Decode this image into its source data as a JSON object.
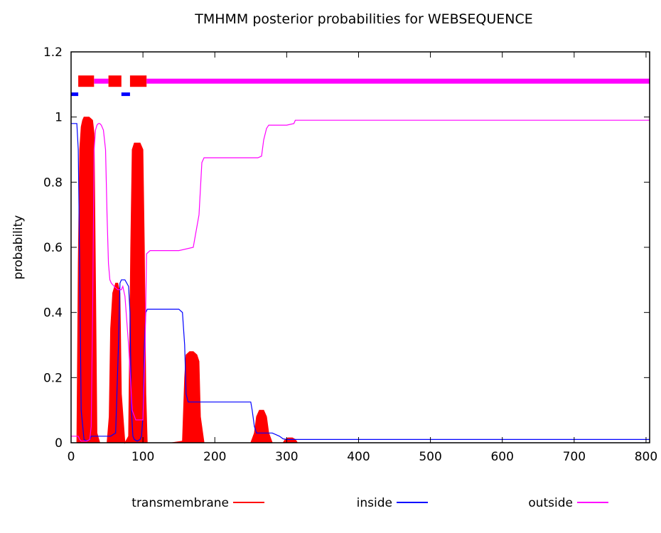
{
  "chart_data": {
    "type": "line",
    "title": "TMHMM posterior probabilities for WEBSEQUENCE",
    "xlabel": "",
    "ylabel": "probability",
    "xlim": [
      0,
      805
    ],
    "ylim": [
      0,
      1.2
    ],
    "x_ticks": [
      "0",
      "100",
      "200",
      "300",
      "400",
      "500",
      "600",
      "700",
      "800"
    ],
    "y_ticks": [
      "0",
      "0.2",
      "0.4",
      "0.6",
      "0.8",
      "1",
      "1.2"
    ],
    "grid": false,
    "legend_position": "bottom",
    "colors": {
      "transmembrane": "#ff0000",
      "inside": "#0000ff",
      "outside": "#ff00ff"
    },
    "series": [
      {
        "name": "transmembrane",
        "style": "filled",
        "x": [
          0,
          8,
          10,
          12,
          14,
          16,
          18,
          20,
          25,
          30,
          32,
          34,
          36,
          40,
          45,
          50,
          53,
          55,
          58,
          62,
          65,
          68,
          70,
          75,
          80,
          83,
          85,
          88,
          92,
          96,
          100,
          102,
          104,
          106,
          110,
          120,
          140,
          155,
          158,
          160,
          165,
          170,
          175,
          178,
          180,
          185,
          200,
          250,
          255,
          258,
          262,
          268,
          272,
          275,
          280,
          295,
          298,
          302,
          308,
          312,
          315,
          320,
          805
        ],
        "values": [
          0,
          0,
          0.55,
          0.9,
          0.97,
          0.99,
          1.0,
          1.0,
          1.0,
          0.99,
          0.95,
          0.5,
          0.03,
          0,
          0,
          0,
          0.08,
          0.35,
          0.46,
          0.49,
          0.49,
          0.46,
          0.15,
          0,
          0.02,
          0.6,
          0.9,
          0.92,
          0.92,
          0.92,
          0.9,
          0.6,
          0.15,
          0,
          0,
          0,
          0,
          0.005,
          0.2,
          0.27,
          0.28,
          0.28,
          0.27,
          0.25,
          0.08,
          0,
          0,
          0,
          0.03,
          0.08,
          0.1,
          0.1,
          0.08,
          0.03,
          0,
          0,
          0.01,
          0.015,
          0.015,
          0.01,
          0,
          0,
          0
        ]
      },
      {
        "name": "inside",
        "style": "line",
        "x": [
          0,
          8,
          10,
          12,
          14,
          18,
          22,
          26,
          28,
          30,
          35,
          50,
          55,
          62,
          66,
          68,
          70,
          75,
          80,
          82,
          84,
          86,
          88,
          92,
          96,
          98,
          100,
          102,
          104,
          106,
          110,
          150,
          155,
          158,
          160,
          163,
          165,
          250,
          252,
          255,
          258,
          265,
          280,
          290,
          295,
          300,
          805
        ],
        "values": [
          0.98,
          0.98,
          0.9,
          0.55,
          0.1,
          0.01,
          0.005,
          0.01,
          0.02,
          0.02,
          0.02,
          0.02,
          0.02,
          0.03,
          0.3,
          0.49,
          0.5,
          0.5,
          0.48,
          0.4,
          0.1,
          0.02,
          0.01,
          0.005,
          0.01,
          0.02,
          0.08,
          0.3,
          0.4,
          0.41,
          0.41,
          0.41,
          0.4,
          0.3,
          0.15,
          0.125,
          0.125,
          0.125,
          0.1,
          0.05,
          0.03,
          0.03,
          0.03,
          0.02,
          0.012,
          0.01,
          0.01
        ]
      },
      {
        "name": "outside",
        "style": "line",
        "x": [
          0,
          8,
          10,
          12,
          14,
          18,
          22,
          26,
          28,
          30,
          32,
          34,
          36,
          38,
          40,
          42,
          45,
          48,
          50,
          52,
          54,
          56,
          60,
          65,
          70,
          72,
          75,
          80,
          85,
          90,
          95,
          100,
          103,
          105,
          110,
          150,
          170,
          178,
          182,
          185,
          260,
          265,
          268,
          272,
          275,
          285,
          300,
          310,
          312,
          315,
          805
        ],
        "values": [
          0.02,
          0.02,
          0.02,
          0.01,
          0.005,
          0.005,
          0.005,
          0.01,
          0.05,
          0.4,
          0.9,
          0.96,
          0.975,
          0.98,
          0.98,
          0.975,
          0.96,
          0.9,
          0.7,
          0.55,
          0.5,
          0.49,
          0.48,
          0.47,
          0.47,
          0.48,
          0.45,
          0.3,
          0.1,
          0.07,
          0.07,
          0.07,
          0.3,
          0.58,
          0.59,
          0.59,
          0.6,
          0.7,
          0.86,
          0.875,
          0.875,
          0.88,
          0.93,
          0.965,
          0.975,
          0.975,
          0.975,
          0.98,
          0.99,
          0.99,
          0.99
        ]
      }
    ],
    "top_track": {
      "segments": [
        {
          "start": 0,
          "end": 10,
          "label": "inside"
        },
        {
          "start": 10,
          "end": 32,
          "label": "transmembrane"
        },
        {
          "start": 32,
          "end": 52,
          "label": "outside"
        },
        {
          "start": 52,
          "end": 70,
          "label": "transmembrane"
        },
        {
          "start": 70,
          "end": 82,
          "label": "inside"
        },
        {
          "start": 82,
          "end": 105,
          "label": "transmembrane"
        },
        {
          "start": 105,
          "end": 805,
          "label": "outside"
        }
      ]
    }
  }
}
